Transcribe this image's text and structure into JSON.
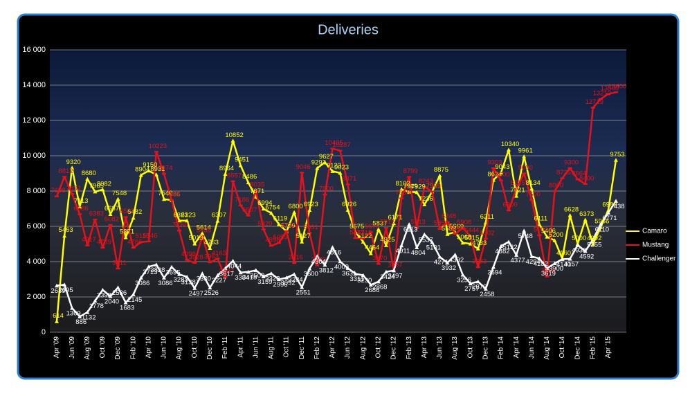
{
  "chart_data": {
    "type": "line",
    "title": "Deliveries",
    "categories": [
      "Apr '09",
      null,
      "Jun '09",
      null,
      "Aug '09",
      null,
      "Oct '09",
      null,
      "Dec '09",
      null,
      "Feb '10",
      null,
      "Apr '10",
      null,
      "Jun '10",
      null,
      "Aug '10",
      null,
      "Oct '10",
      null,
      "Dec '10",
      null,
      "Feb '11",
      null,
      "Apr '11",
      null,
      "Jun '11",
      null,
      "Aug '11",
      null,
      "Oct '11",
      null,
      "Dec '11",
      null,
      "Feb '12",
      null,
      "Apr '12",
      null,
      "Jun '12",
      null,
      "Aug '12",
      null,
      "Oct '12",
      null,
      "Dec '12",
      null,
      "Feb '13",
      null,
      "Apr '13",
      null,
      "Jun '13",
      null,
      "Aug '13",
      null,
      "Oct '13",
      null,
      "Dec '13",
      null,
      "Feb '14",
      null,
      "Apr '14",
      null,
      "Jun '14",
      null,
      "Aug '14",
      null,
      "Oct '14",
      null,
      "Dec '14",
      null,
      "Feb '15",
      null,
      "Apr '15",
      null
    ],
    "series": [
      {
        "name": "Camaro",
        "color": "#ffff00",
        "values": [
          614,
          5463,
          9320,
          7113,
          8680,
          7965,
          8082,
          6687,
          7548,
          5371,
          6482,
          8904,
          9150,
          8931,
          7540,
          7486,
          6321,
          6323,
          5013,
          5614,
          4763,
          6307,
          8964,
          10852,
          9451,
          8486,
          7671,
          6994,
          6754,
          6119,
          5709,
          6800,
          5127,
          6923,
          9292,
          9627,
          9123,
          9023,
          6926,
          5675,
          5122,
          4464,
          5837,
          4925,
          6171,
          8102,
          7949,
          7929,
          7236,
          7969,
          8875,
          5559,
          5669,
          5068,
          5015,
          4733,
          6211,
          8624,
          9043,
          10340,
          7721,
          9961,
          8134,
          6111,
          5406,
          5200,
          4160,
          6628,
          5000,
          6373,
          4992,
          5956,
          6909,
          9753
        ]
      },
      {
        "name": "Mustang",
        "color": "#e8101a",
        "values": [
          7698,
          8812,
          7832,
          6686,
          4917,
          6383,
          4789,
          6082,
          3611,
          6527,
          4786,
          5115,
          5146,
          10223,
          8974,
          7486,
          5760,
          4098,
          3928,
          5458,
          3963,
          4163,
          3137,
          8557,
          7186,
          6607,
          8035,
          5820,
          4898,
          5059,
          5732,
          3916,
          9046,
          5631,
          3789,
          7800,
          10405,
          10287,
          8371,
          5337,
          5312,
          5675,
          3870,
          5915,
          3497,
          7588,
          8799,
          5913,
          8243,
          7969,
          5855,
          6248,
          5569,
          5908,
          5444,
          3683,
          5302,
          9303,
          8600,
          6900,
          8135,
          9000,
          7500,
          5500,
          3158,
          8000,
          8725,
          9300,
          8664,
          8400,
          12719,
          13213,
          13500,
          13600
        ]
      },
      {
        "name": "Challenger",
        "color": "#ffffff",
        "values": [
          2639,
          2695,
          1369,
          886,
          1132,
          1778,
          2398,
          2040,
          2536,
          1683,
          2145,
          3086,
          3713,
          3828,
          3086,
          3695,
          3283,
          3138,
          2497,
          3330,
          2526,
          3227,
          3617,
          4044,
          3384,
          3418,
          3509,
          3159,
          3328,
          2996,
          3092,
          3284,
          2551,
          3600,
          4304,
          3812,
          4816,
          4009,
          3631,
          3311,
          3230,
          2686,
          2868,
          3424,
          3497,
          4911,
          6113,
          4804,
          5537,
          5101,
          4271,
          3932,
          4392,
          3256,
          2757,
          2872,
          2458,
          3694,
          4882,
          5122,
          4377,
          5748,
          4294,
          4182,
          3619,
          3900,
          4140,
          4157,
          4938,
          4592,
          5255,
          6110,
          6771,
          7438
        ]
      }
    ],
    "ylim": [
      0,
      16000
    ],
    "yticks": [
      0,
      {
        "value": 2000,
        "label": "2 000"
      },
      {
        "value": 4000,
        "label": "4 000"
      },
      {
        "value": 6000,
        "label": "6 000"
      },
      {
        "value": 8000,
        "label": "8 000"
      },
      {
        "value": 10000,
        "label": "10 000"
      },
      {
        "value": 12000,
        "label": "12 000"
      },
      {
        "value": 14000,
        "label": "14 000"
      },
      {
        "value": 16000,
        "label": "16 000"
      }
    ],
    "grid": true,
    "legend": "right"
  }
}
